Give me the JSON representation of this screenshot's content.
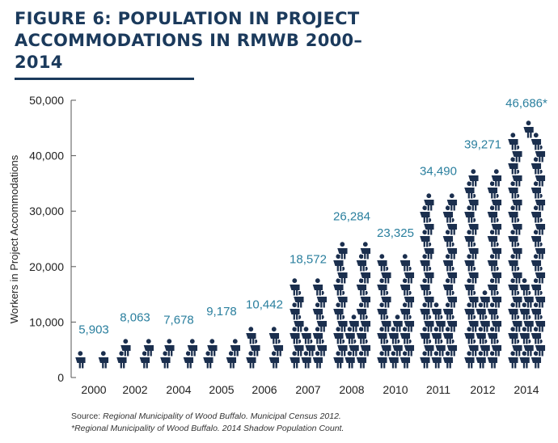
{
  "title": "FIGURE 6: POPULATION IN PROJECT ACCOMMODATIONS IN RMWB 2000–2014",
  "source": {
    "prefix": "Source: ",
    "line1": "Regional Municipality of Wood Buffalo. Municipal Census 2012.",
    "line2": "*Regional Municipality of Wood Buffalo. 2014 Shadow Population Count."
  },
  "chart_data": {
    "type": "bar",
    "title": "FIGURE 6: POPULATION IN PROJECT ACCOMMODATIONS IN RMWB 2000–2014",
    "xlabel": "",
    "ylabel": "Workers in Project Accommodations",
    "ylim": [
      0,
      50000
    ],
    "yticks": [
      0,
      10000,
      20000,
      30000,
      40000,
      50000
    ],
    "ytick_labels": [
      "0",
      "10,000",
      "20,000",
      "30,000",
      "40,000",
      "50,000"
    ],
    "categories": [
      "2000",
      "2002",
      "2004",
      "2005",
      "2006",
      "2007",
      "2008",
      "2010",
      "2011",
      "2012",
      "2014"
    ],
    "values": [
      5903,
      8063,
      7678,
      9178,
      10442,
      18572,
      26284,
      23325,
      34490,
      39271,
      46686
    ],
    "data_labels": [
      "5,903",
      "8,063",
      "7,678",
      "9,178",
      "10,442",
      "18,572",
      "26,284",
      "23,325",
      "34,490",
      "39,271",
      "46,686*"
    ],
    "mark": "stacked person pictograms",
    "colors": {
      "figures": "#1b2f4e",
      "labels": "#2a7f9e",
      "axis": "#555555",
      "title": "#1b3a5c"
    }
  }
}
